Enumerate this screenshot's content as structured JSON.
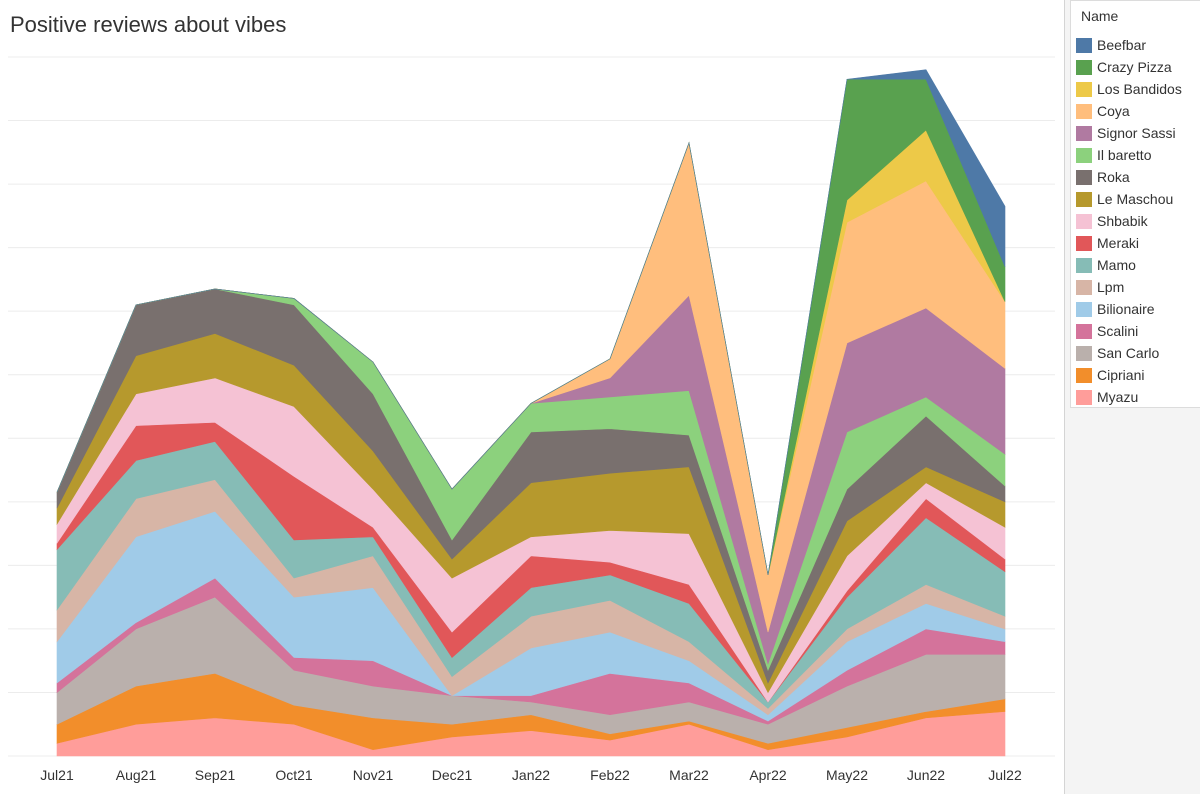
{
  "title": "Positive reviews about vibes",
  "legend": {
    "title": "Name"
  },
  "chart_data": {
    "type": "area",
    "stacked": true,
    "title": "Positive reviews about vibes",
    "xlabel": "",
    "ylabel": "",
    "ylim": [
      0,
      22
    ],
    "grid": true,
    "legend_position": "right",
    "categories": [
      "Jul21",
      "Aug21",
      "Sep21",
      "Oct21",
      "Nov21",
      "Dec21",
      "Jan22",
      "Feb22",
      "Mar22",
      "Apr22",
      "May22",
      "Jun22",
      "Jul22"
    ],
    "series": [
      {
        "name": "Beefbar",
        "color": "#4e79a7",
        "values": [
          0,
          0,
          0,
          0,
          0,
          0,
          0,
          0,
          0,
          0,
          0,
          0.3,
          1.9
        ]
      },
      {
        "name": "Crazy Pizza",
        "color": "#59a14f",
        "values": [
          0,
          0,
          0,
          0,
          0,
          0,
          0,
          0,
          0,
          0,
          3.8,
          1.6,
          1.1
        ]
      },
      {
        "name": "Los Bandidos",
        "color": "#edc948",
        "values": [
          0,
          0,
          0,
          0,
          0,
          0,
          0,
          0,
          0,
          0,
          0.7,
          1.6,
          0
        ]
      },
      {
        "name": "Coya",
        "color": "#ffbe7d",
        "values": [
          0,
          0,
          0,
          0,
          0,
          0,
          0,
          0.6,
          4.8,
          1.8,
          3.8,
          4,
          2.1
        ]
      },
      {
        "name": "Signor Sassi",
        "color": "#b07aa1",
        "values": [
          0,
          0,
          0,
          0,
          0,
          0,
          0,
          0.6,
          3,
          1,
          2.8,
          2.8,
          2.7
        ]
      },
      {
        "name": "Il baretto",
        "color": "#8cd17d",
        "values": [
          0,
          0,
          0,
          0.2,
          1,
          1.6,
          0.9,
          1,
          1.4,
          0.2,
          1.8,
          0.6,
          1
        ]
      },
      {
        "name": "Roka",
        "color": "#79706e",
        "values": [
          0.5,
          1.6,
          1.4,
          1.9,
          1.8,
          0.6,
          1.6,
          1.4,
          1,
          0.4,
          1,
          1.6,
          0.5
        ]
      },
      {
        "name": "Le Maschou",
        "color": "#b6992d",
        "values": [
          0.5,
          1.2,
          1.4,
          1.3,
          1.2,
          0.6,
          1.7,
          1.8,
          2.1,
          0.3,
          1.1,
          0.5,
          0.8
        ]
      },
      {
        "name": "Shbabik",
        "color": "#f5c2d4",
        "values": [
          0.6,
          1,
          1.4,
          2.2,
          1.2,
          1.7,
          0.6,
          1,
          1.6,
          0.3,
          1.1,
          0.5,
          1
        ]
      },
      {
        "name": "Meraki",
        "color": "#e15759",
        "values": [
          0.2,
          1.1,
          0.6,
          2,
          0.3,
          0.8,
          1,
          0.4,
          0.6,
          0,
          0.2,
          0.6,
          0.4
        ]
      },
      {
        "name": "Mamo",
        "color": "#86bcb6",
        "values": [
          1.9,
          1.2,
          1.2,
          1.2,
          0.6,
          0.6,
          0.9,
          0.8,
          1.2,
          0.2,
          1,
          2.1,
          1.4
        ]
      },
      {
        "name": "Lpm",
        "color": "#d7b5a6",
        "values": [
          1,
          1.2,
          1,
          0.6,
          1,
          0.6,
          1,
          1,
          0.6,
          0.2,
          0.4,
          0.6,
          0.4
        ]
      },
      {
        "name": "Bilionaire",
        "color": "#a0cbe8",
        "values": [
          1.3,
          2.7,
          2.1,
          1.9,
          2.3,
          0,
          1.5,
          1.3,
          0.7,
          0.2,
          0.9,
          0.8,
          0.4
        ]
      },
      {
        "name": "Scalini",
        "color": "#d4739b",
        "values": [
          0.3,
          0.2,
          0.6,
          0.4,
          0.8,
          0,
          0.2,
          1.3,
          0.6,
          0.1,
          0.5,
          0.8,
          0.4
        ]
      },
      {
        "name": "San Carlo",
        "color": "#bab0ac",
        "values": [
          1,
          1.8,
          2.4,
          1.1,
          1,
          0.9,
          0.4,
          0.6,
          0.6,
          0.6,
          1.3,
          1.8,
          1.4
        ]
      },
      {
        "name": "Cipriani",
        "color": "#f28e2b",
        "values": [
          0.6,
          1.2,
          1.4,
          0.6,
          1,
          0.4,
          0.5,
          0.2,
          0.1,
          0.2,
          0.3,
          0.2,
          0.4
        ]
      },
      {
        "name": "Myazu",
        "color": "#ff9d9a",
        "values": [
          0.4,
          1,
          1.2,
          1,
          0.2,
          0.6,
          0.8,
          0.5,
          1,
          0.2,
          0.6,
          1.2,
          1.4
        ]
      }
    ]
  }
}
